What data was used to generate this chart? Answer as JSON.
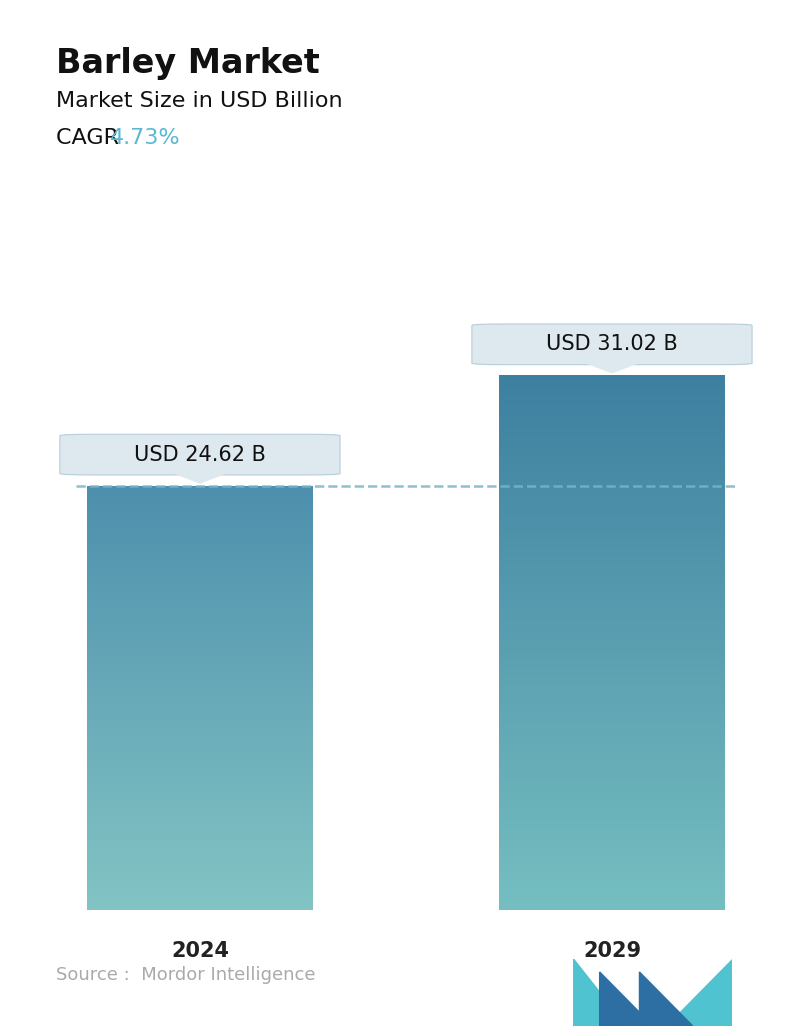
{
  "title": "Barley Market",
  "subtitle": "Market Size in USD Billion",
  "cagr_label": "CAGR ",
  "cagr_value": "4.73%",
  "cagr_color": "#5bb8d4",
  "categories": [
    "2024",
    "2029"
  ],
  "values": [
    24.62,
    31.02
  ],
  "bar_labels": [
    "USD 24.62 B",
    "USD 31.02 B"
  ],
  "bar1_color_top": "#4d8fac",
  "bar1_color_bottom": "#82c4c3",
  "bar2_color_top": "#3d7fa0",
  "bar2_color_bottom": "#75bec0",
  "dashed_line_color": "#7ab3c8",
  "dashed_line_y": 24.62,
  "source_text": "Source :  Mordor Intelligence",
  "source_color": "#aaaaaa",
  "background_color": "#ffffff",
  "ylim": [
    0,
    36
  ],
  "bar_positions": [
    0,
    1
  ],
  "bar_width": 0.55,
  "xlim": [
    -0.35,
    1.35
  ],
  "title_fontsize": 24,
  "subtitle_fontsize": 16,
  "cagr_fontsize": 16,
  "tick_fontsize": 15,
  "label_fontsize": 15,
  "source_fontsize": 13
}
